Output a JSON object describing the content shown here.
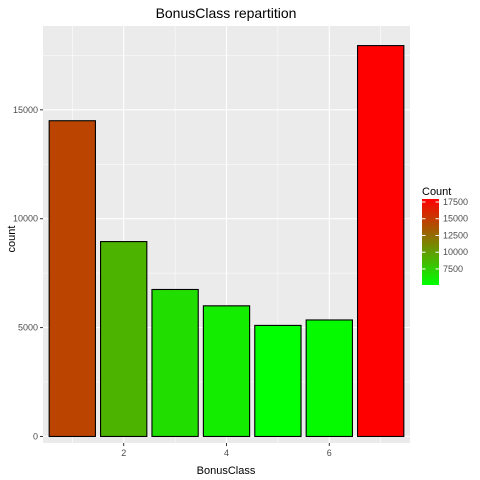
{
  "chart_data": {
    "type": "bar",
    "title": "BonusClass repartition",
    "xlabel": "BonusClass",
    "ylabel": "count",
    "x": [
      1,
      2,
      3,
      4,
      5,
      6,
      7
    ],
    "values": [
      14500,
      8950,
      6750,
      6000,
      5100,
      5350,
      17950
    ],
    "xlim": [
      0.43,
      7.57
    ],
    "ylim": [
      -300,
      18850
    ],
    "x_ticks": [
      2,
      4,
      6
    ],
    "x_tick_labels": [
      "2",
      "4",
      "6"
    ],
    "y_ticks": [
      0,
      5000,
      10000,
      15000
    ],
    "y_tick_labels": [
      "0",
      "5000",
      "10000",
      "15000"
    ],
    "grid": true,
    "legend": {
      "title": "Count",
      "position": "right",
      "type": "colorbar",
      "range": [
        5100,
        17950
      ],
      "ticks": [
        7500,
        10000,
        12500,
        15000,
        17500
      ],
      "tick_labels": [
        "7500",
        "10000",
        "12500",
        "15000",
        "17500"
      ]
    },
    "colors": {
      "low": "#00ff00",
      "high": "#ff0000",
      "panel_background": "#ebebeb",
      "grid": "#ffffff",
      "bar_outline": "#000000"
    }
  }
}
